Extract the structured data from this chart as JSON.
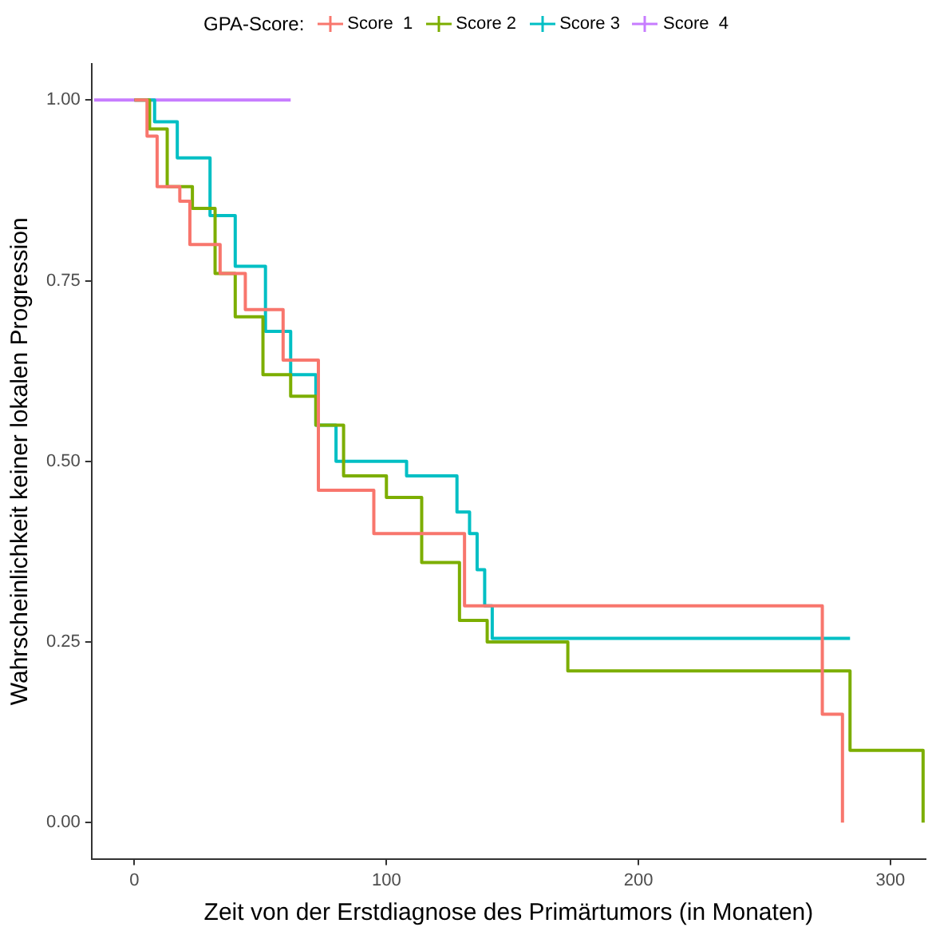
{
  "chart_data": {
    "type": "step",
    "xlabel": "Zeit von der Erstdiagnose des Primärtumors (in Monaten)",
    "ylabel": "Wahrscheinlichkeit keiner lokalen Progression",
    "legend_title": "GPA-Score:",
    "legend": "top",
    "grid": false,
    "marker": "none",
    "line_style": "solid",
    "xlim": [
      -17,
      314
    ],
    "xticks": [
      0,
      100,
      200,
      300
    ],
    "ylim": [
      -0.05,
      1.05
    ],
    "yticks": [
      {
        "value": 0,
        "label": "0.00"
      },
      0.25,
      {
        "value": 0.5,
        "label": "0.50"
      },
      0.75,
      {
        "value": 1,
        "label": "1.00"
      }
    ],
    "series": [
      {
        "name": "Score  1",
        "color": "#f8766d",
        "x": [
          0,
          5,
          9,
          18,
          22,
          34,
          44,
          59,
          73,
          95,
          131,
          273,
          281
        ],
        "values": [
          1,
          0.95,
          0.88,
          0.86,
          0.8,
          0.76,
          0.71,
          0.64,
          0.46,
          0.4,
          0.3,
          0.15,
          0
        ]
      },
      {
        "name": "Score 2",
        "color": "#7cae00",
        "x": [
          0,
          6,
          13,
          23,
          32,
          40,
          51,
          62,
          72,
          83,
          100,
          114,
          129,
          140,
          172,
          284,
          313
        ],
        "values": [
          1,
          0.96,
          0.88,
          0.85,
          0.76,
          0.7,
          0.62,
          0.59,
          0.55,
          0.48,
          0.45,
          0.36,
          0.28,
          0.25,
          0.21,
          0.1,
          0
        ]
      },
      {
        "name": "Score 3",
        "color": "#00bfc4",
        "x": [
          0,
          8,
          17,
          30,
          40,
          52,
          62,
          72,
          80,
          108,
          128,
          133,
          136,
          139,
          142,
          284
        ],
        "values": [
          1,
          0.97,
          0.92,
          0.84,
          0.77,
          0.68,
          0.62,
          0.55,
          0.5,
          0.48,
          0.43,
          0.4,
          0.35,
          0.3,
          0.255,
          0.255
        ]
      },
      {
        "name": "Score  4",
        "color": "#c77cff",
        "x": [
          -16,
          62
        ],
        "values": [
          1,
          1
        ]
      }
    ]
  }
}
